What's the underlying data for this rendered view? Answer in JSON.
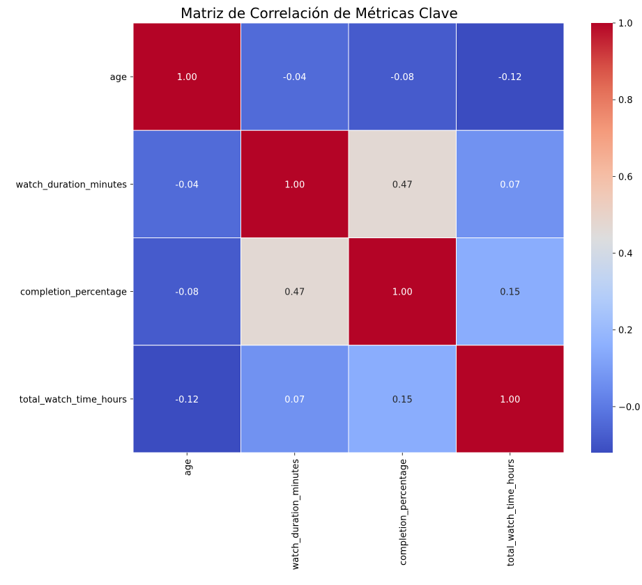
{
  "chart_data": {
    "type": "heatmap",
    "title": "Matriz de Correlación de Métricas Clave",
    "rows": [
      "age",
      "watch_duration_minutes",
      "completion_percentage",
      "total_watch_time_hours"
    ],
    "columns": [
      "age",
      "watch_duration_minutes",
      "completion_percentage",
      "total_watch_time_hours"
    ],
    "values": [
      [
        1.0,
        -0.04,
        -0.08,
        -0.12
      ],
      [
        -0.04,
        1.0,
        0.47,
        0.07
      ],
      [
        -0.08,
        0.47,
        1.0,
        0.15
      ],
      [
        -0.12,
        0.07,
        0.15,
        1.0
      ]
    ],
    "value_format": "0.00",
    "colormap": "coolwarm",
    "colorbar": {
      "range": [
        -0.12,
        1.0
      ],
      "ticks": [
        -0.0,
        0.2,
        0.4,
        0.6,
        0.8,
        1.0
      ],
      "tick_labels": [
        "−0.0",
        "0.2",
        "0.4",
        "0.6",
        "0.8",
        "1.0"
      ]
    }
  }
}
